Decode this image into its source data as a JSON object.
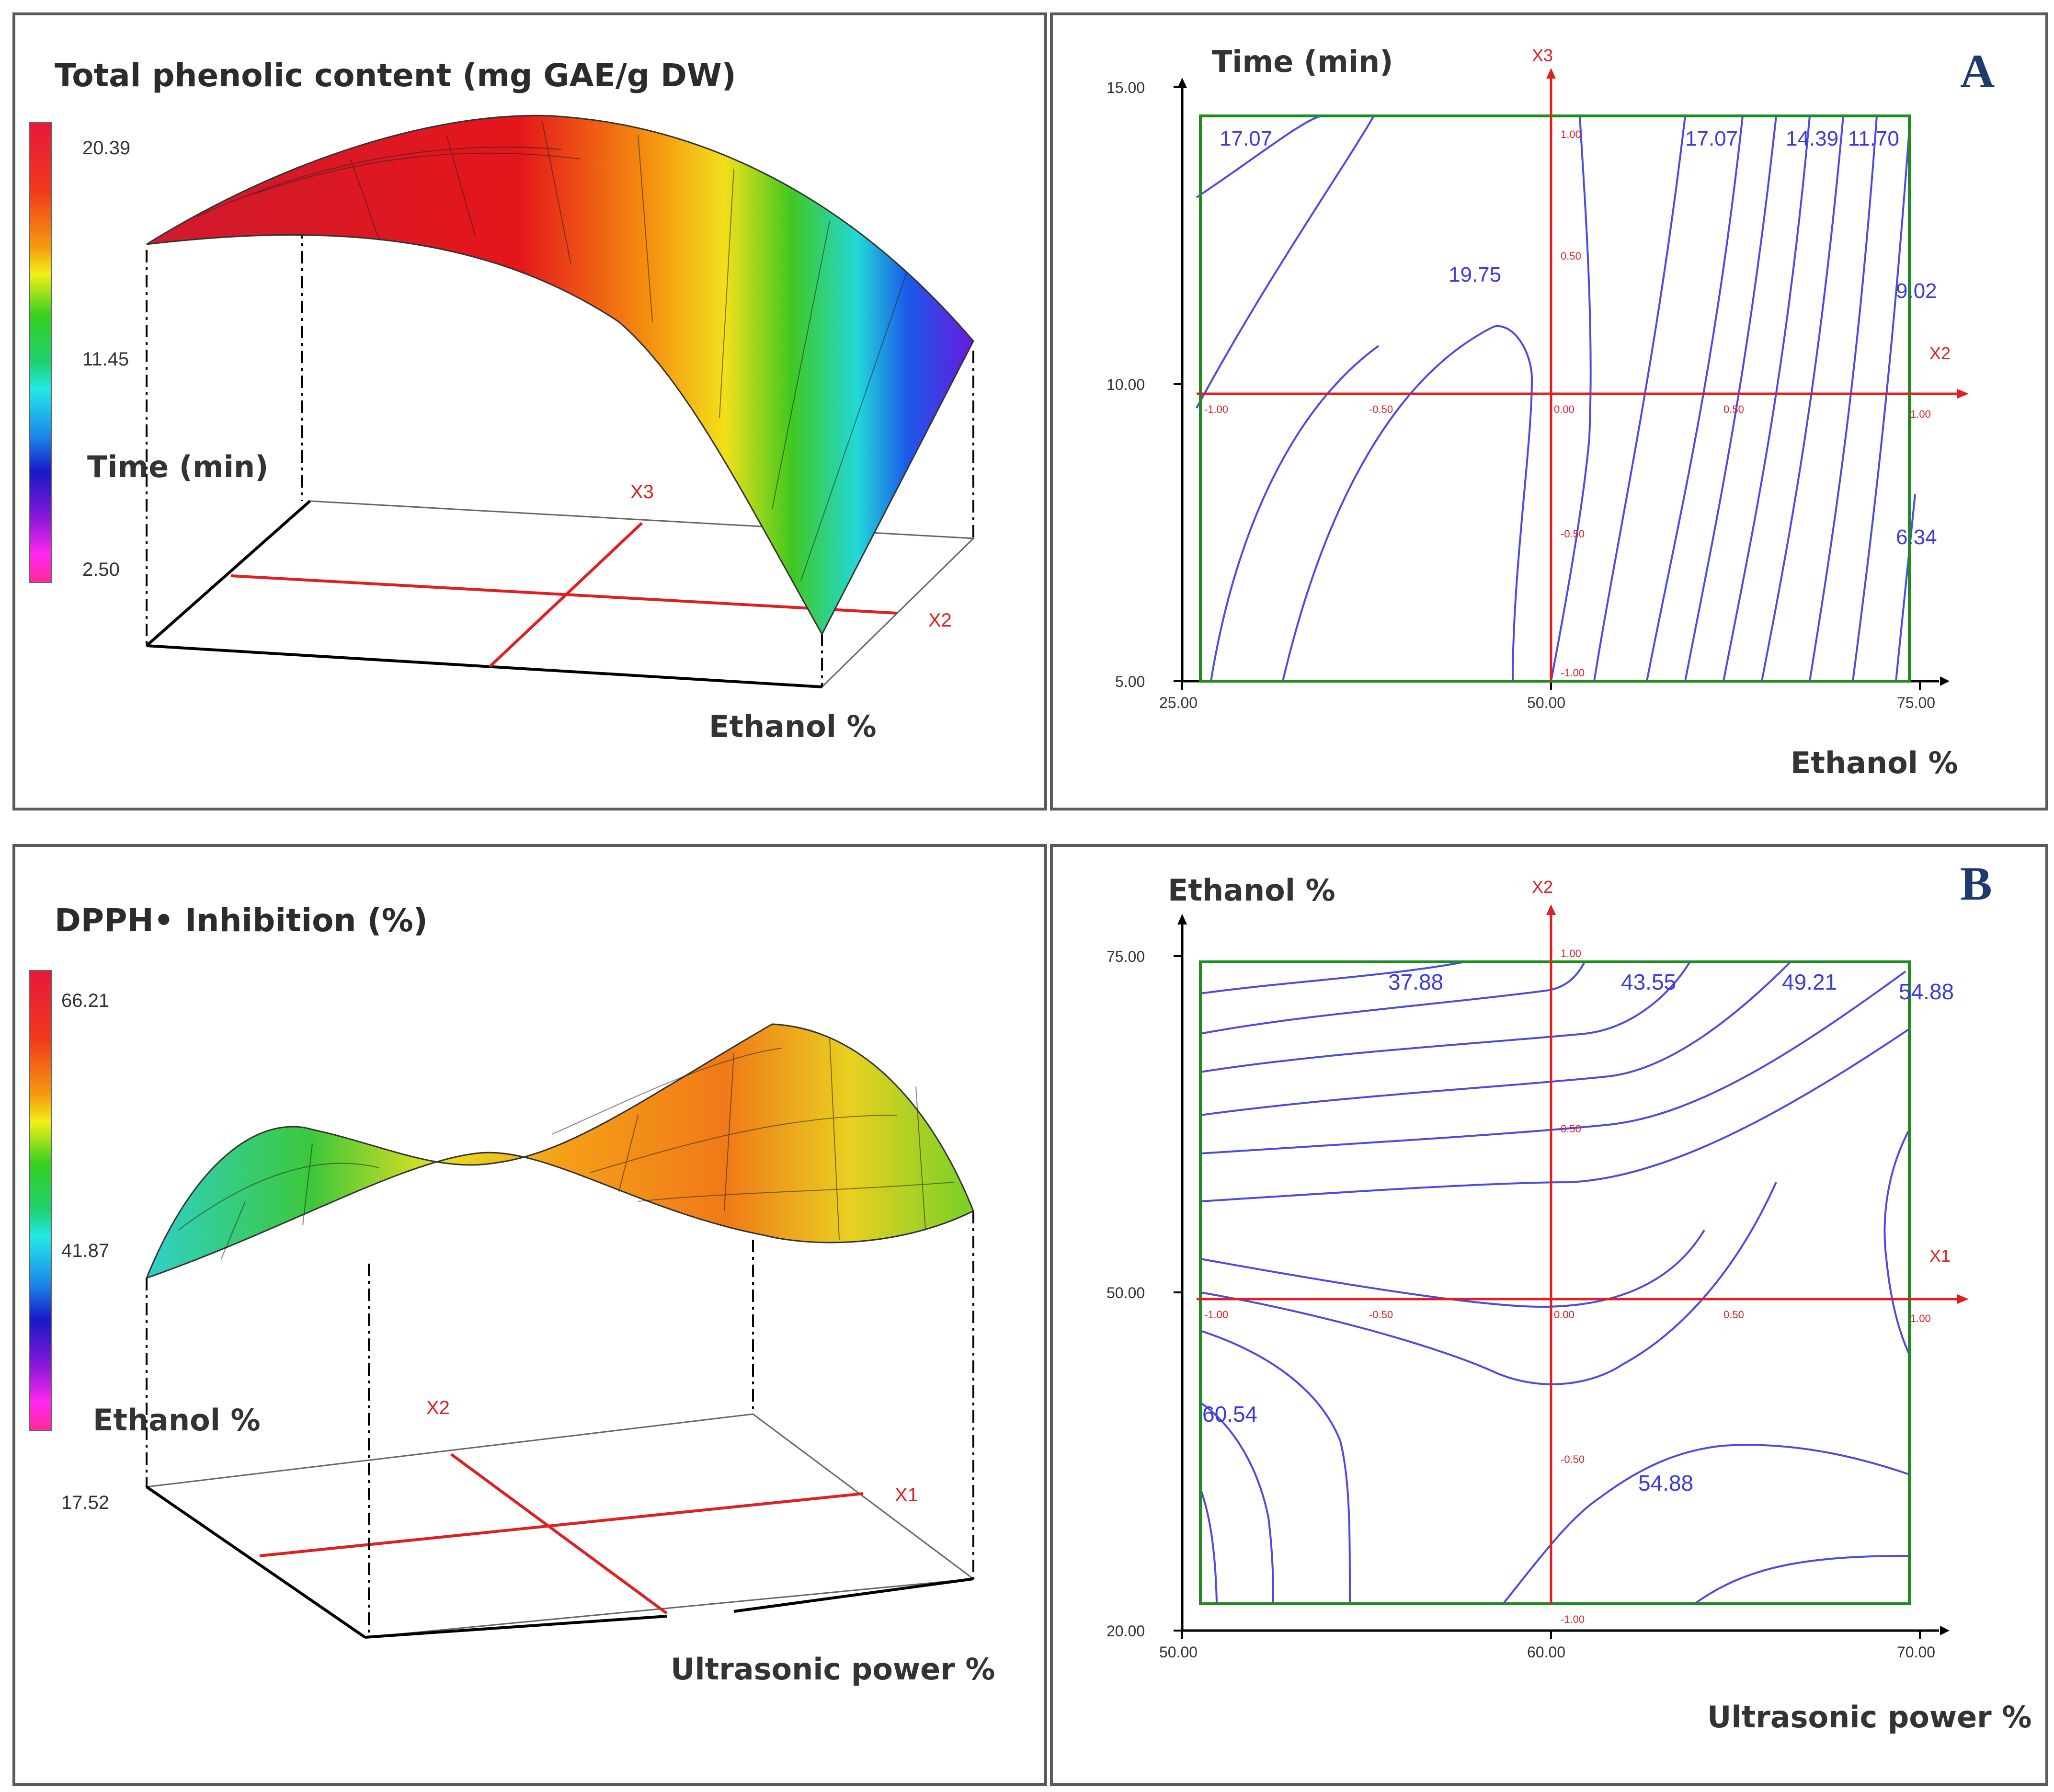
{
  "chart_data": [
    {
      "type": "surface3d",
      "panel": "A-left",
      "title": "Total phenolic content (mg GAE/g DW)",
      "x_axis_label": "Ethanol %",
      "y_axis_label": "Time (min)",
      "coded_labels": [
        "X3",
        "X2"
      ],
      "colorbar_ticks": [
        "20.39",
        "11.45",
        "2.50"
      ],
      "colorbar_range": [
        2.5,
        20.39
      ]
    },
    {
      "type": "contour",
      "panel": "A-right",
      "panel_letter": "A",
      "xlabel": "Ethanol %",
      "ylabel": "Time (min)",
      "xlim": [
        25,
        75
      ],
      "ylim": [
        5,
        15
      ],
      "x_ticks": [
        "25.00",
        "50.00",
        "75.00"
      ],
      "y_ticks": [
        "5.00",
        "10.00",
        "15.00"
      ],
      "coded_axis_x": "X2",
      "coded_axis_y": "X3",
      "coded_ticks_x": [
        "-1.00",
        "-0.50",
        "0.00",
        "0.50",
        "1.00"
      ],
      "coded_ticks_y": [
        "1.00",
        "0.50",
        "-0.50",
        "-1.00"
      ],
      "contour_labels": [
        "17.07",
        "19.75",
        "17.07",
        "14.39",
        "11.70",
        "9.02",
        "6.34"
      ]
    },
    {
      "type": "surface3d",
      "panel": "B-left",
      "title": "DPPH• Inhibition (%)",
      "x_axis_label": "Ultrasonic power %",
      "y_axis_label": "Ethanol %",
      "coded_labels": [
        "X2",
        "X1"
      ],
      "colorbar_ticks": [
        "66.21",
        "41.87",
        "17.52"
      ],
      "colorbar_range": [
        17.52,
        66.21
      ]
    },
    {
      "type": "contour",
      "panel": "B-right",
      "panel_letter": "B",
      "xlabel": "Ultrasonic power %",
      "ylabel": "Ethanol %",
      "xlim": [
        50,
        70
      ],
      "ylim": [
        20,
        75
      ],
      "x_ticks": [
        "50.00",
        "60.00",
        "70.00"
      ],
      "y_ticks": [
        "20.00",
        "50.00",
        "75.00"
      ],
      "coded_axis_x": "X1",
      "coded_axis_y": "X2",
      "coded_ticks_x": [
        "-1.00",
        "-0.50",
        "0.00",
        "0.50",
        "1.00"
      ],
      "coded_ticks_y": [
        "1.00",
        "0.50",
        "-0.50",
        "-1.00"
      ],
      "contour_labels": [
        "37.88",
        "43.55",
        "49.21",
        "54.88",
        "60.54",
        "54.88"
      ]
    }
  ],
  "colors": {
    "contour_line": "#4a4ae8",
    "coded_axis": "#e02020",
    "frame": "#1e8c1e",
    "panel_border": "#5a5a5a"
  }
}
